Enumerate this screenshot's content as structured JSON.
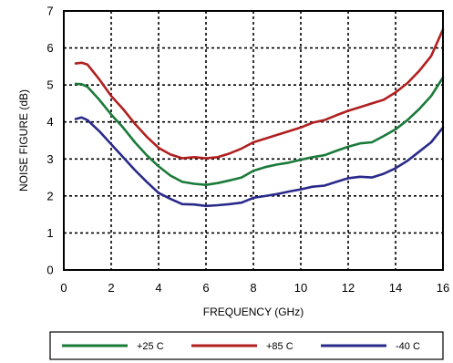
{
  "chart_data": {
    "type": "line",
    "title": "",
    "xlabel": "FREQUENCY (GHz)",
    "ylabel": "NOISE FIGURE (dB)",
    "xlim": [
      0,
      16
    ],
    "ylim": [
      0,
      7
    ],
    "xticks": [
      0,
      2,
      4,
      6,
      8,
      10,
      12,
      14,
      16
    ],
    "yticks": [
      0,
      1,
      2,
      3,
      4,
      5,
      6,
      7
    ],
    "grid": true,
    "grid_style": "dashed",
    "legend_position": "bottom",
    "series": [
      {
        "name": "+25 C",
        "color": "#1a7a3a",
        "x": [
          0.5,
          0.75,
          1.0,
          1.5,
          2.0,
          2.5,
          3.0,
          3.5,
          4.0,
          4.5,
          5.0,
          5.5,
          6.0,
          6.5,
          7.0,
          7.5,
          8.0,
          8.5,
          9.0,
          9.5,
          10.0,
          10.5,
          11.0,
          11.5,
          12.0,
          12.5,
          13.0,
          13.5,
          14.0,
          14.5,
          15.0,
          15.5,
          16.0
        ],
        "y": [
          5.03,
          5.02,
          4.95,
          4.6,
          4.2,
          3.85,
          3.45,
          3.1,
          2.8,
          2.55,
          2.38,
          2.33,
          2.3,
          2.35,
          2.42,
          2.5,
          2.68,
          2.78,
          2.85,
          2.9,
          2.98,
          3.05,
          3.1,
          3.22,
          3.33,
          3.42,
          3.45,
          3.62,
          3.8,
          4.05,
          4.35,
          4.7,
          5.2
        ]
      },
      {
        "name": "+85 C",
        "color": "#b02020",
        "x": [
          0.5,
          0.75,
          1.0,
          1.5,
          2.0,
          2.5,
          3.0,
          3.5,
          4.0,
          4.5,
          5.0,
          5.5,
          6.0,
          6.5,
          7.0,
          7.5,
          8.0,
          8.5,
          9.0,
          9.5,
          10.0,
          10.5,
          11.0,
          11.5,
          12.0,
          12.5,
          13.0,
          13.5,
          14.0,
          14.5,
          15.0,
          15.5,
          16.0
        ],
        "y": [
          5.58,
          5.6,
          5.55,
          5.15,
          4.7,
          4.35,
          3.95,
          3.6,
          3.3,
          3.12,
          3.02,
          3.05,
          3.02,
          3.05,
          3.15,
          3.28,
          3.45,
          3.55,
          3.65,
          3.75,
          3.85,
          3.98,
          4.05,
          4.18,
          4.3,
          4.4,
          4.5,
          4.6,
          4.8,
          5.05,
          5.38,
          5.78,
          6.5
        ]
      },
      {
        "name": "-40 C",
        "color": "#2a2a8a",
        "x": [
          0.5,
          0.75,
          1.0,
          1.5,
          2.0,
          2.5,
          3.0,
          3.5,
          4.0,
          4.5,
          5.0,
          5.5,
          6.0,
          6.5,
          7.0,
          7.5,
          8.0,
          8.5,
          9.0,
          9.5,
          10.0,
          10.5,
          11.0,
          11.5,
          12.0,
          12.5,
          13.0,
          13.5,
          14.0,
          14.5,
          15.0,
          15.5,
          16.0
        ],
        "y": [
          4.08,
          4.12,
          4.05,
          3.75,
          3.4,
          3.05,
          2.7,
          2.38,
          2.08,
          1.92,
          1.78,
          1.77,
          1.73,
          1.75,
          1.78,
          1.82,
          1.95,
          2.0,
          2.05,
          2.12,
          2.18,
          2.25,
          2.28,
          2.38,
          2.48,
          2.52,
          2.5,
          2.6,
          2.75,
          2.95,
          3.2,
          3.45,
          3.85
        ]
      }
    ]
  }
}
